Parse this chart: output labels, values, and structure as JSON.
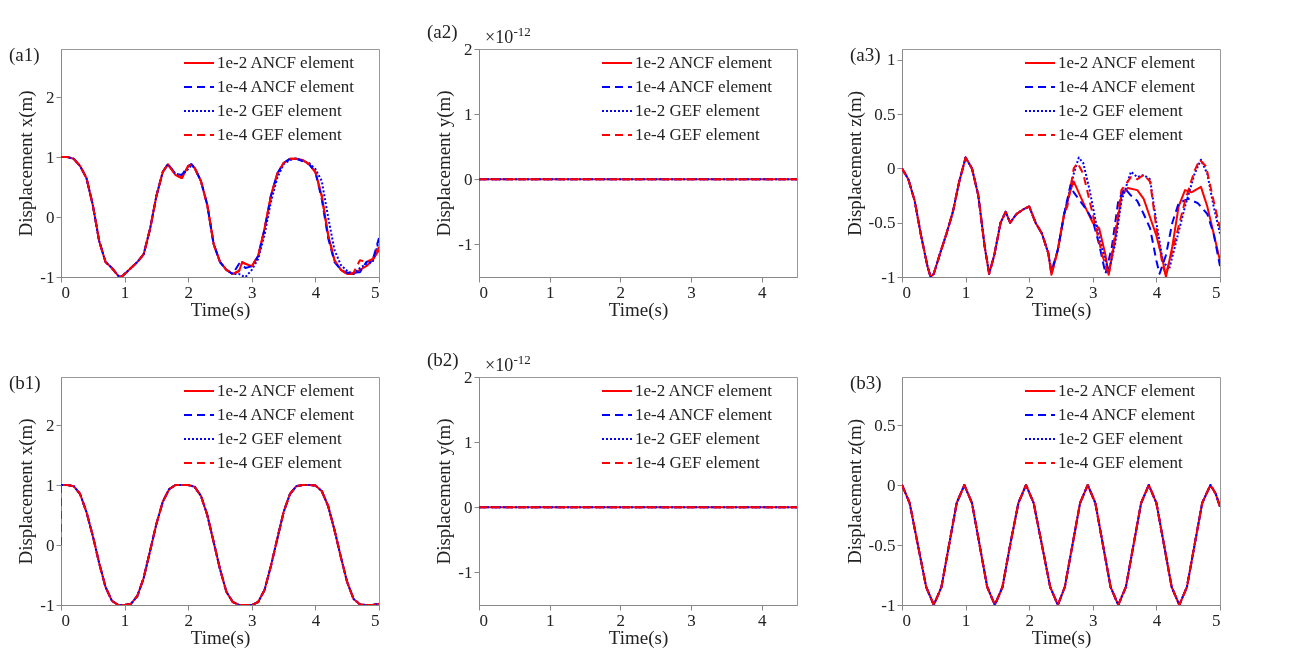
{
  "chart_data": [
    {
      "type": "line",
      "title": "(a1)",
      "xlabel": "Time(s)",
      "ylabel": "Displacement x(m)",
      "xlim": [
        0,
        5
      ],
      "xticks": [
        0,
        1,
        2,
        3,
        4,
        5
      ],
      "ylim": [
        -1,
        2.8
      ],
      "yticks": [
        -1,
        0,
        1,
        2
      ],
      "legend": "top right",
      "x": [
        0,
        0.1,
        0.2,
        0.3,
        0.4,
        0.5,
        0.6,
        0.7,
        0.8,
        0.9,
        0.95,
        1.0,
        1.1,
        1.2,
        1.3,
        1.4,
        1.5,
        1.6,
        1.68,
        1.8,
        1.9,
        2.0,
        2.05,
        2.1,
        2.2,
        2.3,
        2.4,
        2.5,
        2.6,
        2.7,
        2.8,
        2.85,
        2.9,
        3.0,
        3.1,
        3.2,
        3.3,
        3.4,
        3.5,
        3.6,
        3.7,
        3.8,
        3.9,
        4.0,
        4.1,
        4.2,
        4.3,
        4.4,
        4.5,
        4.6,
        4.7,
        4.8,
        4.9,
        5.0
      ],
      "series": [
        {
          "name": "1e-2 ANCF element",
          "color": "#ff0000",
          "line_style": "solid",
          "values": [
            1,
            1,
            0.97,
            0.85,
            0.65,
            0.2,
            -0.4,
            -0.75,
            -0.85,
            -0.98,
            -1,
            -0.95,
            -0.85,
            -0.75,
            -0.62,
            -0.2,
            0.35,
            0.75,
            0.88,
            0.7,
            0.65,
            0.85,
            0.88,
            0.82,
            0.6,
            0.2,
            -0.45,
            -0.75,
            -0.88,
            -0.95,
            -0.9,
            -0.75,
            -0.78,
            -0.82,
            -0.65,
            -0.2,
            0.35,
            0.72,
            0.9,
            0.97,
            0.97,
            0.95,
            0.88,
            0.75,
            0.35,
            -0.3,
            -0.72,
            -0.88,
            -0.95,
            -0.95,
            -0.88,
            -0.82,
            -0.72,
            -0.55
          ]
        },
        {
          "name": "1e-4 ANCF element",
          "color": "#0000ff",
          "line_style": "dashed",
          "values": [
            1,
            1,
            0.97,
            0.85,
            0.65,
            0.2,
            -0.4,
            -0.75,
            -0.85,
            -0.98,
            -1,
            -0.95,
            -0.85,
            -0.75,
            -0.62,
            -0.2,
            0.35,
            0.75,
            0.88,
            0.72,
            0.7,
            0.85,
            0.88,
            0.82,
            0.6,
            0.2,
            -0.45,
            -0.75,
            -0.88,
            -0.95,
            -0.78,
            -0.8,
            -0.85,
            -0.82,
            -0.65,
            -0.2,
            0.35,
            0.72,
            0.9,
            0.97,
            0.97,
            0.93,
            0.88,
            0.75,
            0.3,
            -0.35,
            -0.75,
            -0.88,
            -0.93,
            -0.93,
            -0.92,
            -0.75,
            -0.72,
            -0.35
          ]
        },
        {
          "name": "1e-2 GEF element",
          "color": "#0000ff",
          "line_style": "dotted",
          "values": [
            1,
            1,
            0.97,
            0.85,
            0.65,
            0.2,
            -0.4,
            -0.75,
            -0.85,
            -0.98,
            -1,
            -0.95,
            -0.85,
            -0.75,
            -0.62,
            -0.2,
            0.35,
            0.75,
            0.88,
            0.72,
            0.7,
            0.8,
            0.86,
            0.82,
            0.6,
            0.2,
            -0.45,
            -0.75,
            -0.88,
            -0.95,
            -0.95,
            -0.98,
            -1,
            -0.88,
            -0.7,
            -0.3,
            0.25,
            0.65,
            0.88,
            0.95,
            0.98,
            0.93,
            0.9,
            0.8,
            0.6,
            0.0,
            -0.55,
            -0.8,
            -0.9,
            -0.95,
            -0.85,
            -0.78,
            -0.75,
            -0.4
          ]
        },
        {
          "name": "1e-4 GEF element",
          "color": "#ff0000",
          "line_style": "dashed",
          "values": [
            1,
            1,
            0.97,
            0.85,
            0.65,
            0.2,
            -0.4,
            -0.75,
            -0.85,
            -0.98,
            -1,
            -0.95,
            -0.85,
            -0.75,
            -0.62,
            -0.2,
            0.35,
            0.75,
            0.88,
            0.7,
            0.65,
            0.85,
            0.88,
            0.82,
            0.6,
            0.2,
            -0.45,
            -0.75,
            -0.88,
            -0.95,
            -0.9,
            -0.75,
            -0.78,
            -0.82,
            -0.65,
            -0.2,
            0.35,
            0.72,
            0.9,
            0.97,
            0.97,
            0.95,
            0.88,
            0.75,
            0.35,
            -0.3,
            -0.72,
            -0.88,
            -0.95,
            -0.93,
            -0.72,
            -0.75,
            -0.7,
            -0.5
          ]
        }
      ]
    },
    {
      "type": "line",
      "title": "(a2)",
      "xlabel": "Time(s)",
      "ylabel": "Displacement y(m)",
      "xlim": [
        0,
        4.5
      ],
      "xticks": [
        0,
        1,
        2,
        3,
        4
      ],
      "ylim": [
        -1.5,
        2
      ],
      "yticks": [
        -1,
        0,
        1,
        2
      ],
      "legend": "top right",
      "annotations": [
        "×10$^{-12}$"
      ],
      "x": [
        0,
        4.5
      ],
      "series": [
        {
          "name": "1e-2 ANCF element",
          "color": "#ff0000",
          "line_style": "solid",
          "values": [
            0,
            0
          ]
        },
        {
          "name": "1e-4 ANCF element",
          "color": "#0000ff",
          "line_style": "dashed",
          "values": [
            0,
            0
          ]
        },
        {
          "name": "1e-2 GEF element",
          "color": "#0000ff",
          "line_style": "dotted",
          "values": [
            0,
            0
          ]
        },
        {
          "name": "1e-4 GEF element",
          "color": "#ff0000",
          "line_style": "dashed",
          "values": [
            0,
            0
          ]
        }
      ]
    },
    {
      "type": "line",
      "title": "(a3)",
      "xlabel": "Time(s)",
      "ylabel": "Displacement z(m)",
      "xlim": [
        0,
        5
      ],
      "xticks": [
        0,
        1,
        2,
        3,
        4,
        5
      ],
      "ylim": [
        -1,
        1.1
      ],
      "yticks": [
        -1,
        -0.5,
        0,
        0.5,
        1
      ],
      "legend": "top right",
      "series": [
        {
          "name": "1e-2 ANCF element",
          "color": "#ff0000",
          "line_style": "solid",
          "x": [
            0,
            0.1,
            0.2,
            0.3,
            0.4,
            0.45,
            0.5,
            0.6,
            0.7,
            0.8,
            0.9,
            1.0,
            1.1,
            1.2,
            1.3,
            1.37,
            1.45,
            1.55,
            1.63,
            1.7,
            1.8,
            1.9,
            2.0,
            2.1,
            2.2,
            2.3,
            2.35,
            2.45,
            2.55,
            2.65,
            2.7,
            2.8,
            2.9,
            3.0,
            3.1,
            3.2,
            3.25,
            3.35,
            3.45,
            3.55,
            3.7,
            3.8,
            3.9,
            4.0,
            4.1,
            4.15,
            4.25,
            4.35,
            4.45,
            4.55,
            4.7,
            4.8,
            4.9,
            5.0
          ],
          "values": [
            0,
            -0.1,
            -0.3,
            -0.62,
            -0.9,
            -1,
            -0.97,
            -0.78,
            -0.6,
            -0.4,
            -0.12,
            0.1,
            0.0,
            -0.25,
            -0.72,
            -0.97,
            -0.8,
            -0.5,
            -0.4,
            -0.5,
            -0.42,
            -0.38,
            -0.35,
            -0.5,
            -0.6,
            -0.78,
            -0.98,
            -0.75,
            -0.42,
            -0.2,
            -0.12,
            -0.25,
            -0.38,
            -0.5,
            -0.55,
            -0.8,
            -0.98,
            -0.65,
            -0.25,
            -0.18,
            -0.2,
            -0.28,
            -0.45,
            -0.62,
            -0.85,
            -1,
            -0.72,
            -0.35,
            -0.2,
            -0.22,
            -0.17,
            -0.35,
            -0.6,
            -0.85
          ]
        },
        {
          "name": "1e-4 ANCF element",
          "color": "#0000ff",
          "line_style": "dashed",
          "x": [
            0,
            0.1,
            0.2,
            0.3,
            0.4,
            0.45,
            0.5,
            0.6,
            0.7,
            0.8,
            0.9,
            1.0,
            1.1,
            1.2,
            1.3,
            1.37,
            1.45,
            1.55,
            1.63,
            1.7,
            1.8,
            1.9,
            2.0,
            2.1,
            2.2,
            2.3,
            2.35,
            2.45,
            2.55,
            2.65,
            2.7,
            2.8,
            2.9,
            3.0,
            3.1,
            3.2,
            3.3,
            3.4,
            3.5,
            3.6,
            3.7,
            3.8,
            3.9,
            4.0,
            4.05,
            4.15,
            4.25,
            4.35,
            4.5,
            4.65,
            4.8,
            4.9,
            5.0
          ],
          "values": [
            0,
            -0.1,
            -0.3,
            -0.62,
            -0.9,
            -1,
            -0.97,
            -0.78,
            -0.6,
            -0.4,
            -0.12,
            0.1,
            0.0,
            -0.25,
            -0.72,
            -0.97,
            -0.8,
            -0.5,
            -0.4,
            -0.5,
            -0.42,
            -0.38,
            -0.35,
            -0.5,
            -0.6,
            -0.78,
            -0.95,
            -0.75,
            -0.42,
            -0.15,
            -0.22,
            -0.3,
            -0.38,
            -0.48,
            -0.7,
            -0.97,
            -0.72,
            -0.3,
            -0.18,
            -0.25,
            -0.3,
            -0.42,
            -0.55,
            -0.85,
            -0.97,
            -0.8,
            -0.5,
            -0.32,
            -0.28,
            -0.32,
            -0.42,
            -0.6,
            -0.9
          ]
        },
        {
          "name": "1e-2 GEF element",
          "color": "#0000ff",
          "line_style": "dotted",
          "x": [
            0,
            0.1,
            0.2,
            0.3,
            0.4,
            0.45,
            0.5,
            0.6,
            0.7,
            0.8,
            0.9,
            1.0,
            1.1,
            1.2,
            1.3,
            1.37,
            1.45,
            1.55,
            1.63,
            1.7,
            1.8,
            1.9,
            2.0,
            2.1,
            2.2,
            2.3,
            2.35,
            2.45,
            2.55,
            2.6,
            2.7,
            2.78,
            2.85,
            2.95,
            3.05,
            3.15,
            3.25,
            3.35,
            3.45,
            3.6,
            3.7,
            3.8,
            3.9,
            4.0,
            4.1,
            4.2,
            4.3,
            4.45,
            4.6,
            4.7,
            4.8,
            4.9,
            5.0
          ],
          "values": [
            0,
            -0.1,
            -0.3,
            -0.62,
            -0.9,
            -1,
            -0.97,
            -0.78,
            -0.6,
            -0.4,
            -0.12,
            0.1,
            0.0,
            -0.25,
            -0.72,
            -0.97,
            -0.8,
            -0.5,
            -0.4,
            -0.5,
            -0.42,
            -0.38,
            -0.35,
            -0.5,
            -0.6,
            -0.78,
            -0.95,
            -0.75,
            -0.42,
            -0.3,
            -0.05,
            0.1,
            0.05,
            -0.2,
            -0.5,
            -0.75,
            -0.95,
            -0.7,
            -0.3,
            -0.03,
            -0.08,
            -0.06,
            -0.1,
            -0.5,
            -0.85,
            -0.93,
            -0.7,
            -0.35,
            -0.05,
            0.08,
            -0.05,
            -0.35,
            -0.6
          ]
        },
        {
          "name": "1e-4 GEF element",
          "color": "#ff0000",
          "line_style": "dashed",
          "x": [
            0,
            0.1,
            0.2,
            0.3,
            0.4,
            0.45,
            0.5,
            0.6,
            0.7,
            0.8,
            0.9,
            1.0,
            1.1,
            1.2,
            1.3,
            1.37,
            1.45,
            1.55,
            1.63,
            1.7,
            1.8,
            1.9,
            2.0,
            2.1,
            2.2,
            2.3,
            2.35,
            2.45,
            2.55,
            2.6,
            2.7,
            2.76,
            2.85,
            2.95,
            3.05,
            3.15,
            3.25,
            3.35,
            3.45,
            3.6,
            3.7,
            3.8,
            3.9,
            4.0,
            4.1,
            4.15,
            4.3,
            4.45,
            4.6,
            4.68,
            4.78,
            4.9,
            5.0
          ],
          "values": [
            0,
            -0.1,
            -0.3,
            -0.62,
            -0.9,
            -1,
            -0.97,
            -0.78,
            -0.6,
            -0.4,
            -0.12,
            0.1,
            0.0,
            -0.25,
            -0.72,
            -0.97,
            -0.8,
            -0.5,
            -0.4,
            -0.5,
            -0.42,
            -0.38,
            -0.35,
            -0.5,
            -0.6,
            -0.78,
            -0.98,
            -0.75,
            -0.42,
            -0.35,
            0.0,
            0.05,
            -0.05,
            -0.3,
            -0.55,
            -0.8,
            -0.98,
            -0.6,
            -0.2,
            -0.08,
            -0.1,
            -0.06,
            -0.12,
            -0.55,
            -0.9,
            -0.98,
            -0.65,
            -0.3,
            -0.02,
            0.08,
            0.02,
            -0.3,
            -0.55
          ]
        }
      ]
    },
    {
      "type": "line",
      "title": "(b1)",
      "xlabel": "Time(s)",
      "ylabel": "Displacement x(m)",
      "xlim": [
        0,
        5
      ],
      "xticks": [
        0,
        1,
        2,
        3,
        4,
        5
      ],
      "ylim": [
        -1,
        2.8
      ],
      "yticks": [
        -1,
        0,
        1,
        2
      ],
      "legend": "top right",
      "x": [
        0,
        0.1,
        0.2,
        0.3,
        0.4,
        0.5,
        0.6,
        0.7,
        0.8,
        0.9,
        1.0,
        1.1,
        1.2,
        1.3,
        1.4,
        1.5,
        1.6,
        1.7,
        1.8,
        1.9,
        2.0,
        2.1,
        2.2,
        2.3,
        2.4,
        2.5,
        2.6,
        2.7,
        2.8,
        2.9,
        3.0,
        3.1,
        3.2,
        3.3,
        3.4,
        3.5,
        3.6,
        3.7,
        3.8,
        3.9,
        4.0,
        4.1,
        4.2,
        4.3,
        4.4,
        4.5,
        4.6,
        4.7,
        4.8,
        4.9,
        5.0
      ],
      "series": [
        {
          "name": "1e-2 ANCF element",
          "color": "#ff0000",
          "line_style": "solid",
          "values": [
            1,
            1,
            0.98,
            0.85,
            0.55,
            0.15,
            -0.3,
            -0.7,
            -0.93,
            -1,
            -1,
            -0.98,
            -0.85,
            -0.55,
            -0.1,
            0.35,
            0.72,
            0.93,
            1,
            1,
            1,
            0.97,
            0.82,
            0.5,
            0.05,
            -0.4,
            -0.78,
            -0.95,
            -1,
            -1,
            -1,
            -0.95,
            -0.75,
            -0.35,
            0.1,
            0.55,
            0.85,
            0.98,
            1,
            1,
            0.99,
            0.9,
            0.65,
            0.25,
            -0.2,
            -0.62,
            -0.9,
            -0.99,
            -1,
            -1,
            -0.98
          ]
        },
        {
          "name": "1e-4 ANCF element",
          "color": "#0000ff",
          "line_style": "dashed",
          "x": [
            0,
            0,
            0.1,
            0.2,
            0.3,
            0.4,
            0.5,
            0.6,
            0.7,
            0.8,
            0.9,
            1.0,
            1.1,
            1.2,
            1.3,
            1.4,
            1.5,
            1.6,
            1.7,
            1.8,
            1.9,
            2.0,
            2.1,
            2.2,
            2.3,
            2.4,
            2.5,
            2.6,
            2.7,
            2.8,
            2.9,
            3.0,
            3.1,
            3.2,
            3.3,
            3.4,
            3.5,
            3.6,
            3.7,
            3.8,
            3.9,
            4.0,
            4.1,
            4.2,
            4.3,
            4.4,
            4.5,
            4.6,
            4.7,
            4.8,
            4.9,
            5.0
          ],
          "values": [
            0,
            1,
            1,
            0.98,
            0.85,
            0.55,
            0.15,
            -0.3,
            -0.7,
            -0.93,
            -1,
            -1,
            -0.98,
            -0.85,
            -0.55,
            -0.1,
            0.35,
            0.72,
            0.93,
            1,
            1,
            1,
            0.97,
            0.82,
            0.5,
            0.05,
            -0.4,
            -0.78,
            -0.95,
            -1,
            -1,
            -1,
            -0.95,
            -0.75,
            -0.35,
            0.1,
            0.55,
            0.85,
            0.98,
            1,
            1,
            0.99,
            0.9,
            0.65,
            0.25,
            -0.2,
            -0.62,
            -0.9,
            -0.99,
            -1,
            -1,
            -0.98
          ]
        },
        {
          "name": "1e-2 GEF element",
          "color": "#0000ff",
          "line_style": "dotted",
          "values": [
            1,
            1,
            0.98,
            0.85,
            0.55,
            0.15,
            -0.3,
            -0.7,
            -0.93,
            -1,
            -1,
            -0.98,
            -0.85,
            -0.55,
            -0.1,
            0.35,
            0.72,
            0.93,
            1,
            1,
            1,
            0.97,
            0.82,
            0.5,
            0.05,
            -0.4,
            -0.78,
            -0.95,
            -1,
            -1,
            -1,
            -0.95,
            -0.75,
            -0.35,
            0.1,
            0.55,
            0.85,
            0.98,
            1,
            1,
            0.99,
            0.9,
            0.65,
            0.25,
            -0.2,
            -0.62,
            -0.9,
            -0.99,
            -1,
            -1,
            -0.98
          ]
        },
        {
          "name": "1e-4 GEF element",
          "color": "#ff0000",
          "line_style": "dashed",
          "x": [
            0,
            0,
            0.1,
            0.2,
            0.3,
            0.4,
            0.5,
            0.6,
            0.7,
            0.8,
            0.9,
            1.0,
            1.1,
            1.2,
            1.3,
            1.4,
            1.5,
            1.6,
            1.7,
            1.8,
            1.9,
            2.0,
            2.1,
            2.2,
            2.3,
            2.4,
            2.5,
            2.6,
            2.7,
            2.8,
            2.9,
            3.0,
            3.1,
            3.2,
            3.3,
            3.4,
            3.5,
            3.6,
            3.7,
            3.8,
            3.9,
            4.0,
            4.1,
            4.2,
            4.3,
            4.4,
            4.5,
            4.6,
            4.7,
            4.8,
            4.9,
            5.0
          ],
          "values": [
            0,
            1,
            1,
            0.98,
            0.85,
            0.55,
            0.15,
            -0.3,
            -0.7,
            -0.93,
            -1,
            -1,
            -0.98,
            -0.85,
            -0.55,
            -0.1,
            0.35,
            0.72,
            0.93,
            1,
            1,
            1,
            0.97,
            0.82,
            0.5,
            0.05,
            -0.4,
            -0.78,
            -0.95,
            -1,
            -1,
            -1,
            -0.95,
            -0.75,
            -0.35,
            0.1,
            0.55,
            0.85,
            0.98,
            1,
            1,
            0.99,
            0.9,
            0.65,
            0.25,
            -0.2,
            -0.62,
            -0.9,
            -0.99,
            -1,
            -1,
            -0.98
          ]
        }
      ]
    },
    {
      "type": "line",
      "title": "(b2)",
      "xlabel": "Time(s)",
      "ylabel": "Displacement y(m)",
      "xlim": [
        0,
        4.5
      ],
      "xticks": [
        0,
        1,
        2,
        3,
        4
      ],
      "ylim": [
        -1.5,
        2
      ],
      "yticks": [
        -1,
        0,
        1,
        2
      ],
      "legend": "top right",
      "annotations": [
        "×10$^{-12}$"
      ],
      "x": [
        0,
        4.5
      ],
      "series": [
        {
          "name": "1e-2 ANCF element",
          "color": "#ff0000",
          "line_style": "solid",
          "values": [
            0,
            0
          ]
        },
        {
          "name": "1e-4 ANCF element",
          "color": "#0000ff",
          "line_style": "dashed",
          "values": [
            0,
            0
          ]
        },
        {
          "name": "1e-2 GEF element",
          "color": "#0000ff",
          "line_style": "dotted",
          "values": [
            0,
            0
          ]
        },
        {
          "name": "1e-4 GEF element",
          "color": "#ff0000",
          "line_style": "dashed",
          "values": [
            0,
            0
          ]
        }
      ]
    },
    {
      "type": "line",
      "title": "(b3)",
      "xlabel": "Time(s)",
      "ylabel": "Displacement z(m)",
      "xlim": [
        0,
        5
      ],
      "xticks": [
        0,
        1,
        2,
        3,
        4,
        5
      ],
      "ylim": [
        -1,
        0.9
      ],
      "yticks": [
        -1,
        -0.5,
        0,
        0.5
      ],
      "legend": "top right",
      "x": [
        0,
        0.12,
        0.25,
        0.38,
        0.5,
        0.62,
        0.74,
        0.86,
        0.98,
        1.1,
        1.22,
        1.34,
        1.46,
        1.58,
        1.7,
        1.83,
        1.95,
        2.07,
        2.2,
        2.33,
        2.45,
        2.56,
        2.68,
        2.8,
        2.92,
        3.04,
        3.16,
        3.28,
        3.4,
        3.52,
        3.64,
        3.76,
        3.88,
        4.0,
        4.12,
        4.24,
        4.36,
        4.48,
        4.6,
        4.72,
        4.85,
        4.93,
        5.0
      ],
      "series": [
        {
          "name": "1e-2 ANCF element",
          "color": "#ff0000",
          "line_style": "solid",
          "values": [
            0,
            -0.15,
            -0.5,
            -0.85,
            -1,
            -0.85,
            -0.5,
            -0.15,
            0,
            -0.15,
            -0.5,
            -0.85,
            -1,
            -0.85,
            -0.5,
            -0.15,
            0,
            -0.15,
            -0.5,
            -0.85,
            -1,
            -0.85,
            -0.5,
            -0.15,
            0,
            -0.15,
            -0.5,
            -0.85,
            -1,
            -0.85,
            -0.5,
            -0.15,
            0,
            -0.15,
            -0.5,
            -0.85,
            -1,
            -0.85,
            -0.5,
            -0.15,
            0,
            -0.07,
            -0.18
          ]
        },
        {
          "name": "1e-4 ANCF element",
          "color": "#0000ff",
          "line_style": "dashed",
          "values": [
            0,
            -0.15,
            -0.5,
            -0.85,
            -1,
            -0.85,
            -0.5,
            -0.15,
            0,
            -0.15,
            -0.5,
            -0.85,
            -1,
            -0.85,
            -0.5,
            -0.15,
            0,
            -0.15,
            -0.5,
            -0.85,
            -1,
            -0.85,
            -0.5,
            -0.15,
            0,
            -0.15,
            -0.5,
            -0.85,
            -1,
            -0.85,
            -0.5,
            -0.15,
            0,
            -0.15,
            -0.5,
            -0.85,
            -1,
            -0.85,
            -0.5,
            -0.15,
            0,
            -0.07,
            -0.18
          ]
        },
        {
          "name": "1e-2 GEF element",
          "color": "#0000ff",
          "line_style": "dotted",
          "values": [
            0,
            -0.15,
            -0.5,
            -0.85,
            -1,
            -0.85,
            -0.5,
            -0.15,
            0,
            -0.15,
            -0.5,
            -0.85,
            -1,
            -0.85,
            -0.5,
            -0.15,
            0,
            -0.15,
            -0.5,
            -0.85,
            -1,
            -0.85,
            -0.5,
            -0.15,
            0,
            -0.15,
            -0.5,
            -0.85,
            -1,
            -0.85,
            -0.5,
            -0.15,
            0,
            -0.15,
            -0.5,
            -0.85,
            -1,
            -0.85,
            -0.5,
            -0.15,
            0,
            -0.07,
            -0.18
          ]
        },
        {
          "name": "1e-4 GEF element",
          "color": "#ff0000",
          "line_style": "dashed",
          "values": [
            0,
            -0.15,
            -0.5,
            -0.85,
            -1,
            -0.85,
            -0.5,
            -0.15,
            0,
            -0.15,
            -0.5,
            -0.85,
            -1,
            -0.85,
            -0.5,
            -0.15,
            0,
            -0.15,
            -0.5,
            -0.85,
            -1,
            -0.85,
            -0.5,
            -0.15,
            0,
            -0.15,
            -0.5,
            -0.85,
            -1,
            -0.85,
            -0.5,
            -0.15,
            0,
            -0.15,
            -0.5,
            -0.85,
            -1,
            -0.85,
            -0.5,
            -0.15,
            0,
            -0.07,
            -0.18
          ]
        }
      ]
    }
  ]
}
